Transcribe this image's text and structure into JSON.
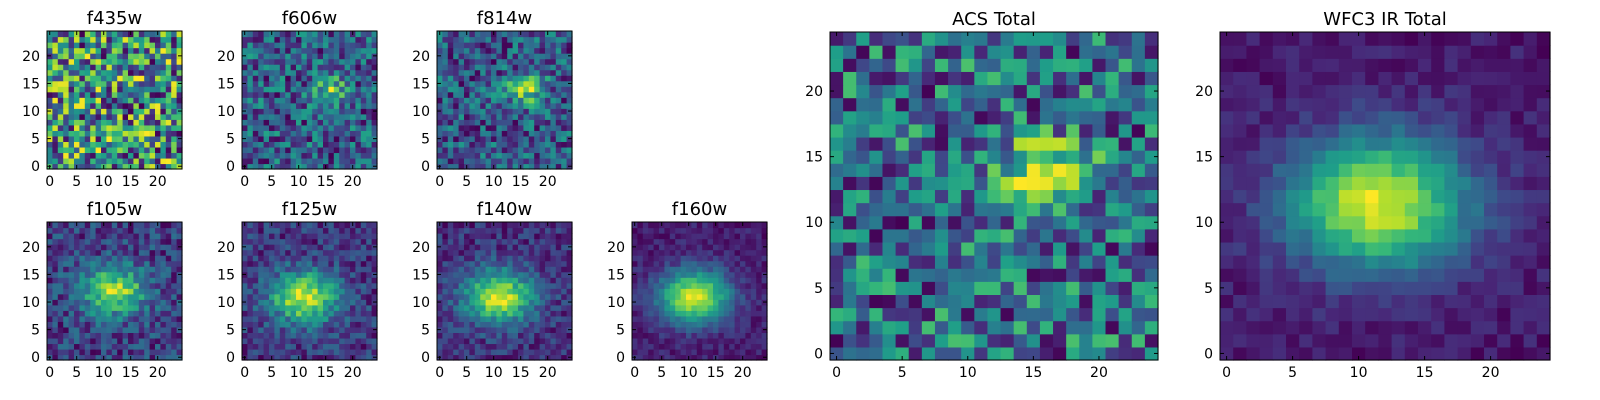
{
  "chart_data": [
    {
      "type": "heatmap",
      "title": "f435w",
      "colormap": "viridis",
      "grid_size": 25,
      "xticks": [
        0,
        5,
        10,
        15,
        20
      ],
      "yticks": [
        0,
        5,
        10,
        15,
        20
      ],
      "xlim": [
        0,
        24
      ],
      "ylim": [
        0,
        24
      ],
      "source": {
        "sx": 0,
        "sy": 0,
        "sigma": 0,
        "peak": 0
      },
      "noise": 0.28,
      "background": 0.62
    },
    {
      "type": "heatmap",
      "title": "f606w",
      "colormap": "viridis",
      "grid_size": 25,
      "xticks": [
        0,
        5,
        10,
        15,
        20
      ],
      "yticks": [
        0,
        5,
        10,
        15,
        20
      ],
      "xlim": [
        0,
        24
      ],
      "ylim": [
        0,
        24
      ],
      "source": {
        "sx": 16,
        "sy": 14,
        "sigma": 2.2,
        "peak": 0.35
      },
      "noise": 0.24,
      "background": 0.58
    },
    {
      "type": "heatmap",
      "title": "f814w",
      "colormap": "viridis",
      "grid_size": 25,
      "xticks": [
        0,
        5,
        10,
        15,
        20
      ],
      "yticks": [
        0,
        5,
        10,
        15,
        20
      ],
      "xlim": [
        0,
        24
      ],
      "ylim": [
        0,
        24
      ],
      "source": {
        "sx": 16,
        "sy": 14,
        "sigma": 2.6,
        "peak": 0.4
      },
      "noise": 0.22,
      "background": 0.55
    },
    {
      "type": "heatmap",
      "title": "f105w",
      "colormap": "viridis",
      "grid_size": 25,
      "xticks": [
        0,
        5,
        10,
        15,
        20
      ],
      "yticks": [
        0,
        5,
        10,
        15,
        20
      ],
      "xlim": [
        0,
        24
      ],
      "ylim": [
        0,
        24
      ],
      "source": {
        "sx": 12,
        "sy": 12,
        "sigma": 4.2,
        "peak": 0.5
      },
      "noise": 0.14,
      "background": 0.4
    },
    {
      "type": "heatmap",
      "title": "f125w",
      "colormap": "viridis",
      "grid_size": 25,
      "xticks": [
        0,
        5,
        10,
        15,
        20
      ],
      "yticks": [
        0,
        5,
        10,
        15,
        20
      ],
      "xlim": [
        0,
        24
      ],
      "ylim": [
        0,
        24
      ],
      "source": {
        "sx": 11,
        "sy": 11,
        "sigma": 4.4,
        "peak": 0.58
      },
      "noise": 0.12,
      "background": 0.32
    },
    {
      "type": "heatmap",
      "title": "f140w",
      "colormap": "viridis",
      "grid_size": 25,
      "xticks": [
        0,
        5,
        10,
        15,
        20
      ],
      "yticks": [
        0,
        5,
        10,
        15,
        20
      ],
      "xlim": [
        0,
        24
      ],
      "ylim": [
        0,
        24
      ],
      "source": {
        "sx": 11,
        "sy": 11,
        "sigma": 4.5,
        "peak": 0.62
      },
      "noise": 0.11,
      "background": 0.3
    },
    {
      "type": "heatmap",
      "title": "f160w",
      "colormap": "viridis",
      "grid_size": 25,
      "xticks": [
        0,
        5,
        10,
        15,
        20
      ],
      "yticks": [
        0,
        5,
        10,
        15,
        20
      ],
      "xlim": [
        0,
        24
      ],
      "ylim": [
        0,
        24
      ],
      "source": {
        "sx": 11,
        "sy": 11,
        "sigma": 4.6,
        "peak": 0.72
      },
      "noise": 0.07,
      "background": 0.2
    },
    {
      "type": "heatmap",
      "title": "ACS Total",
      "colormap": "viridis",
      "grid_size": 25,
      "xticks": [
        0,
        5,
        10,
        15,
        20
      ],
      "yticks": [
        0,
        5,
        10,
        15,
        20
      ],
      "xlim": [
        0,
        24
      ],
      "ylim": [
        0,
        24
      ],
      "source": {
        "sx": 16,
        "sy": 14,
        "sigma": 2.4,
        "peak": 0.36
      },
      "noise": 0.2,
      "background": 0.6
    },
    {
      "type": "heatmap",
      "title": "WFC3 IR Total",
      "colormap": "viridis",
      "grid_size": 25,
      "xticks": [
        0,
        5,
        10,
        15,
        20
      ],
      "yticks": [
        0,
        5,
        10,
        15,
        20
      ],
      "xlim": [
        0,
        24
      ],
      "ylim": [
        0,
        24
      ],
      "source": {
        "sx": 11.5,
        "sy": 11.5,
        "sigma": 4.8,
        "peak": 0.75
      },
      "noise": 0.06,
      "background": 0.18
    }
  ]
}
